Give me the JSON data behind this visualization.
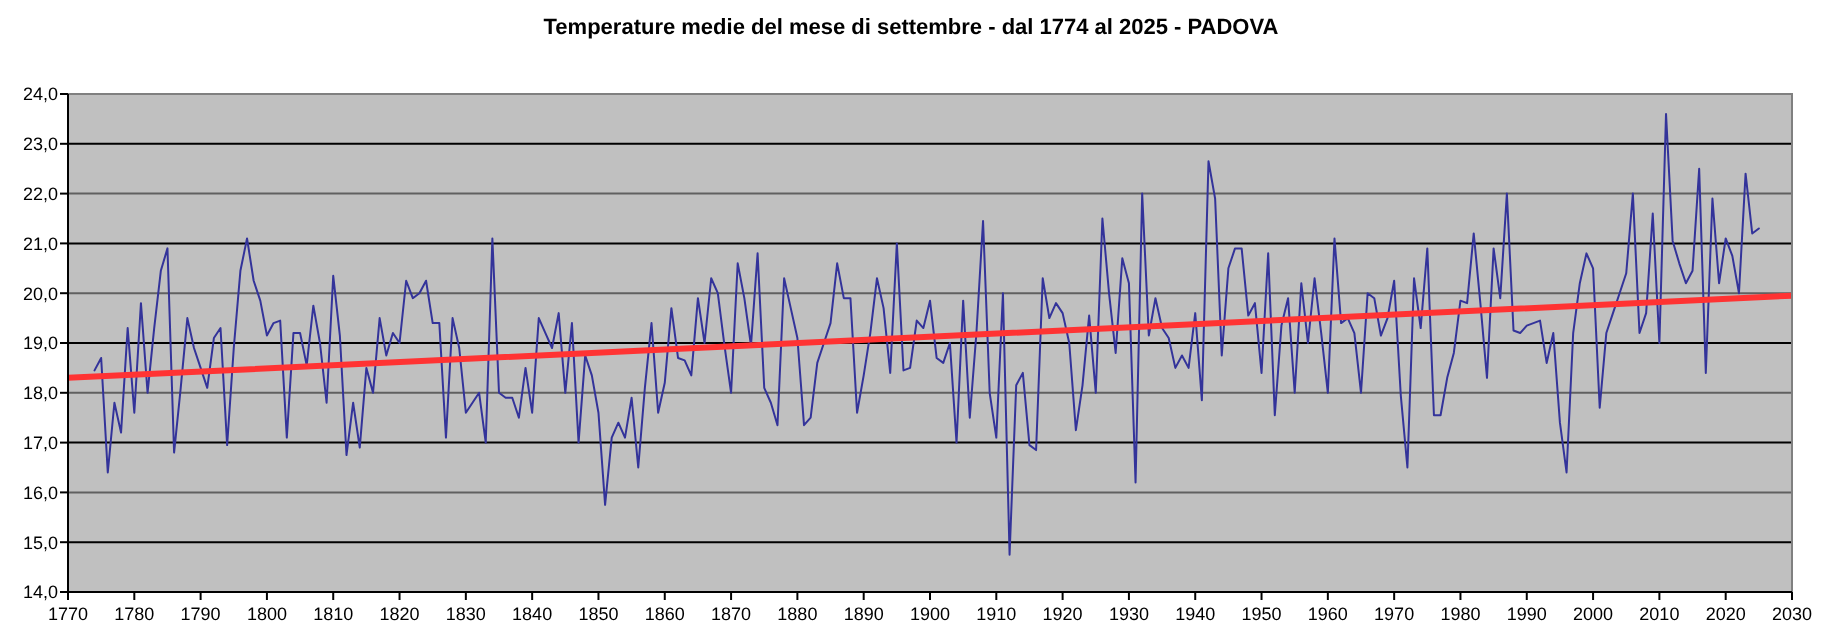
{
  "chart_data": {
    "type": "line",
    "title": "Temperature medie del mese di settembre - dal 1774 al 2025 - PADOVA",
    "xlim": [
      1770,
      2030
    ],
    "xticks": [
      1770,
      1780,
      1790,
      1800,
      1810,
      1820,
      1830,
      1840,
      1850,
      1860,
      1870,
      1880,
      1890,
      1900,
      1910,
      1920,
      1930,
      1940,
      1950,
      1960,
      1970,
      1980,
      1990,
      2000,
      2010,
      2020,
      2030
    ],
    "ylim": [
      14,
      24
    ],
    "yticks": [
      {
        "value": 14,
        "label": "14,0"
      },
      {
        "value": 15,
        "label": "15,0"
      },
      {
        "value": 16,
        "label": "16,0"
      },
      {
        "value": 17,
        "label": "17,0"
      },
      {
        "value": 18,
        "label": "18,0"
      },
      {
        "value": 19,
        "label": "19,0"
      },
      {
        "value": 20,
        "label": "20,0"
      },
      {
        "value": 21,
        "label": "21,0"
      },
      {
        "value": 22,
        "label": "22,0"
      },
      {
        "value": 23,
        "label": "23,0"
      },
      {
        "value": 24,
        "label": "24,0"
      }
    ],
    "grid": "y",
    "marker": "none",
    "line_style": "solid",
    "series": [
      {
        "color": "#33339a",
        "x": [
          1774,
          1775,
          1776,
          1777,
          1778,
          1779,
          1780,
          1781,
          1782,
          1783,
          1784,
          1785,
          1786,
          1787,
          1788,
          1789,
          1790,
          1791,
          1792,
          1793,
          1794,
          1795,
          1796,
          1797,
          1798,
          1799,
          1800,
          1801,
          1802,
          1803,
          1804,
          1805,
          1806,
          1807,
          1808,
          1809,
          1810,
          1811,
          1812,
          1813,
          1814,
          1815,
          1816,
          1817,
          1818,
          1819,
          1820,
          1821,
          1822,
          1823,
          1824,
          1825,
          1826,
          1827,
          1828,
          1829,
          1830,
          1831,
          1832,
          1833,
          1834,
          1835,
          1836,
          1837,
          1838,
          1839,
          1840,
          1841,
          1842,
          1843,
          1844,
          1845,
          1846,
          1847,
          1848,
          1849,
          1850,
          1851,
          1852,
          1853,
          1854,
          1855,
          1856,
          1857,
          1858,
          1859,
          1860,
          1861,
          1862,
          1863,
          1864,
          1865,
          1866,
          1867,
          1868,
          1869,
          1870,
          1871,
          1872,
          1873,
          1874,
          1875,
          1876,
          1877,
          1878,
          1879,
          1880,
          1881,
          1882,
          1883,
          1884,
          1885,
          1886,
          1887,
          1888,
          1889,
          1890,
          1891,
          1892,
          1893,
          1894,
          1895,
          1896,
          1897,
          1898,
          1899,
          1900,
          1901,
          1902,
          1903,
          1904,
          1905,
          1906,
          1907,
          1908,
          1909,
          1910,
          1911,
          1912,
          1913,
          1914,
          1915,
          1916,
          1917,
          1918,
          1919,
          1920,
          1921,
          1922,
          1923,
          1924,
          1925,
          1926,
          1927,
          1928,
          1929,
          1930,
          1931,
          1932,
          1933,
          1934,
          1935,
          1936,
          1937,
          1938,
          1939,
          1940,
          1941,
          1942,
          1943,
          1944,
          1945,
          1946,
          1947,
          1948,
          1949,
          1950,
          1951,
          1952,
          1953,
          1954,
          1955,
          1956,
          1957,
          1958,
          1959,
          1960,
          1961,
          1962,
          1963,
          1964,
          1965,
          1966,
          1967,
          1968,
          1969,
          1970,
          1971,
          1972,
          1973,
          1974,
          1975,
          1976,
          1977,
          1978,
          1979,
          1980,
          1981,
          1982,
          1983,
          1984,
          1985,
          1986,
          1987,
          1988,
          1989,
          1990,
          1991,
          1992,
          1993,
          1994,
          1995,
          1996,
          1997,
          1998,
          1999,
          2000,
          2001,
          2002,
          2003,
          2004,
          2005,
          2006,
          2007,
          2008,
          2009,
          2010,
          2011,
          2012,
          2013,
          2014,
          2015,
          2016,
          2017,
          2018,
          2019,
          2020,
          2021,
          2022,
          2023,
          2024,
          2025
        ],
        "values": [
          18.45,
          18.7,
          16.4,
          17.8,
          17.2,
          19.3,
          17.6,
          19.8,
          18.0,
          19.3,
          20.45,
          20.9,
          16.8,
          18.1,
          19.5,
          18.9,
          18.5,
          18.1,
          19.1,
          19.3,
          16.95,
          18.9,
          20.45,
          21.1,
          20.25,
          19.85,
          19.15,
          19.4,
          19.45,
          17.1,
          19.2,
          19.2,
          18.55,
          19.75,
          19.0,
          17.8,
          20.35,
          19.15,
          16.75,
          17.8,
          16.9,
          18.5,
          18.0,
          19.5,
          18.75,
          19.2,
          19.0,
          20.25,
          19.9,
          20.0,
          20.25,
          19.4,
          19.4,
          17.1,
          19.5,
          18.9,
          17.6,
          17.8,
          18.0,
          17.0,
          21.1,
          18.0,
          17.9,
          17.9,
          17.5,
          18.5,
          17.6,
          19.5,
          19.2,
          18.9,
          19.6,
          18.0,
          19.4,
          17.0,
          18.75,
          18.35,
          17.6,
          15.75,
          17.1,
          17.4,
          17.1,
          17.9,
          16.5,
          18.1,
          19.4,
          17.6,
          18.2,
          19.7,
          18.7,
          18.65,
          18.35,
          19.9,
          19.0,
          20.3,
          20.0,
          18.95,
          18.0,
          20.6,
          19.9,
          18.95,
          20.8,
          18.1,
          17.8,
          17.35,
          20.3,
          19.7,
          19.1,
          17.35,
          17.5,
          18.6,
          19.0,
          19.4,
          20.6,
          19.9,
          19.9,
          17.6,
          18.35,
          19.2,
          20.3,
          19.7,
          18.4,
          21.0,
          18.45,
          18.5,
          19.45,
          19.3,
          19.85,
          18.7,
          18.6,
          19.0,
          17.0,
          19.85,
          17.5,
          19.2,
          21.45,
          18.0,
          17.1,
          20.0,
          14.75,
          18.15,
          18.4,
          16.95,
          16.85,
          20.3,
          19.5,
          19.8,
          19.6,
          19.0,
          17.25,
          18.15,
          19.55,
          18.0,
          21.5,
          20.0,
          18.8,
          20.7,
          20.2,
          16.2,
          22.0,
          19.15,
          19.9,
          19.3,
          19.1,
          18.5,
          18.75,
          18.5,
          19.6,
          17.85,
          22.65,
          21.9,
          18.75,
          20.5,
          20.9,
          20.9,
          19.55,
          19.8,
          18.4,
          20.8,
          17.55,
          19.35,
          19.9,
          18.0,
          20.2,
          19.0,
          20.3,
          19.2,
          18.0,
          21.1,
          19.4,
          19.5,
          19.2,
          18.0,
          20.0,
          19.9,
          19.15,
          19.5,
          20.25,
          17.95,
          16.5,
          20.3,
          19.3,
          20.9,
          17.55,
          17.55,
          18.3,
          18.8,
          19.85,
          19.8,
          21.2,
          19.8,
          18.3,
          20.9,
          19.9,
          22.0,
          19.25,
          19.2,
          19.35,
          19.4,
          19.45,
          18.6,
          19.2,
          17.4,
          16.4,
          19.2,
          20.2,
          20.8,
          20.5,
          17.7,
          19.2,
          19.6,
          20.0,
          20.4,
          22.0,
          19.2,
          19.6,
          21.6,
          19.0,
          23.6,
          21.05,
          20.6,
          20.2,
          20.45,
          22.5,
          18.4,
          21.9,
          20.2,
          21.1,
          20.75,
          20.0,
          22.4,
          21.2,
          21.3
        ]
      },
      {
        "color": "#ff3333",
        "x": [
          1770,
          2030
        ],
        "values": [
          18.3,
          19.95
        ]
      }
    ]
  }
}
